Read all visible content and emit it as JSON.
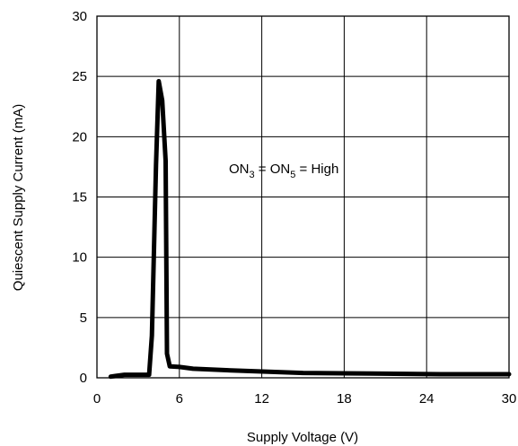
{
  "chart_data": {
    "type": "line",
    "xlabel": "Supply Voltage (V)",
    "ylabel": "Quiescent Supply Current (mA)",
    "xlim": [
      0,
      30
    ],
    "ylim": [
      0,
      30
    ],
    "x_ticks": [
      0,
      6,
      12,
      18,
      24,
      30
    ],
    "y_ticks": [
      0,
      5,
      10,
      15,
      20,
      25,
      30
    ],
    "grid": true,
    "annotation": {
      "parts": [
        "ON",
        "3",
        " = ON",
        "5",
        " = High"
      ]
    },
    "series": [
      {
        "x": [
          1.0,
          2.0,
          3.8,
          4.0,
          4.3,
          4.5,
          4.75,
          5.0,
          5.1,
          5.3,
          6.0,
          7.0,
          10.0,
          15.0,
          20.0,
          25.0,
          30.0
        ],
        "y": [
          0.1,
          0.25,
          0.25,
          3.5,
          17.7,
          24.6,
          23.0,
          18.0,
          2.0,
          0.95,
          0.9,
          0.75,
          0.6,
          0.4,
          0.35,
          0.3,
          0.3
        ]
      }
    ],
    "colors": {
      "line": "#000000",
      "grid": "#000000"
    }
  }
}
